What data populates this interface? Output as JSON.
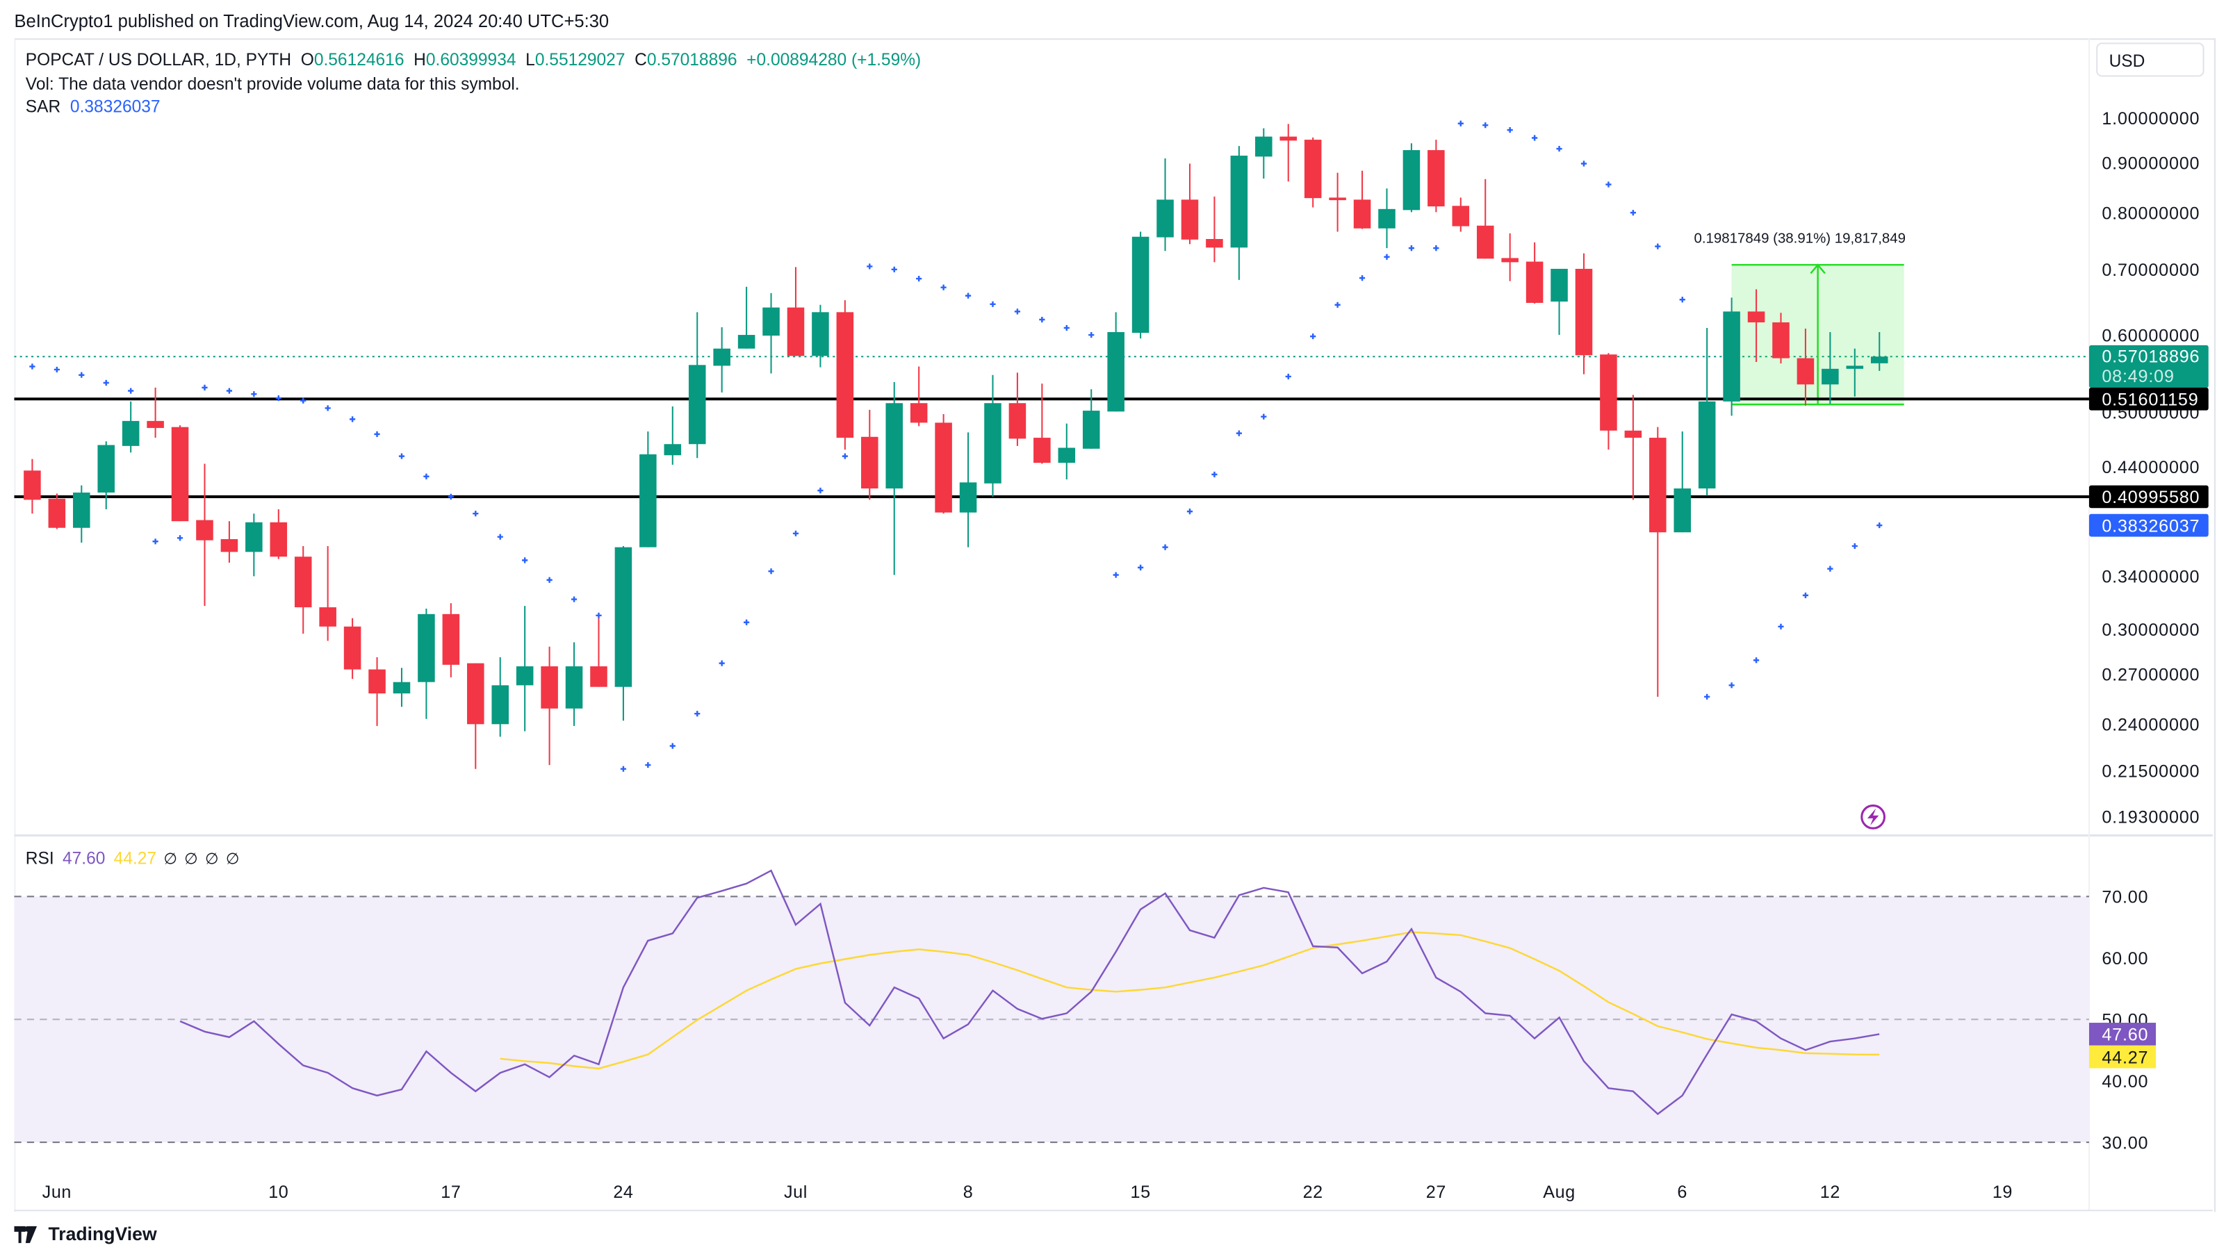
{
  "header": {
    "published": "BeInCrypto1 published on TradingView.com, Aug 14, 2024 20:40 UTC+5:30"
  },
  "legend": {
    "symbol": "POPCAT / US DOLLAR, 1D, PYTH",
    "o_label": "O",
    "o": "0.56124616",
    "h_label": "H",
    "h": "0.60399934",
    "l_label": "L",
    "l": "0.55129027",
    "c_label": "C",
    "c": "0.57018896",
    "change": "+0.00894280 (+1.59%)",
    "vol": "Vol: The data vendor doesn't provide volume data for this symbol.",
    "sar_label": "SAR",
    "sar": "0.38326037"
  },
  "currency": "USD",
  "price_axis": {
    "ticks": [
      "1.00000000",
      "0.90000000",
      "0.80000000",
      "0.70000000",
      "0.60000000",
      "0.50000000",
      "0.44000000",
      "0.34000000",
      "0.30000000",
      "0.27000000",
      "0.24000000",
      "0.21500000",
      "0.19300000"
    ]
  },
  "price_labels": {
    "last": "0.57018896",
    "countdown": "08:49:09",
    "level1": "0.51601159",
    "level2": "0.40995580",
    "sar": "0.38326037"
  },
  "measure": {
    "text": "0.19817849 (38.91%) 19,817,849",
    "from_price": 0.5094,
    "to_price": 0.7076,
    "start_index": 69,
    "end_index": 76
  },
  "rsi": {
    "label": "RSI",
    "value": "47.60",
    "ma": "44.27",
    "extras": [
      "∅",
      "∅",
      "∅",
      "∅"
    ],
    "ticks": [
      "70.00",
      "60.00",
      "50.00",
      "40.00",
      "30.00"
    ],
    "bands": [
      70,
      50,
      30
    ]
  },
  "x_axis": [
    {
      "label": "Jun",
      "index": 1
    },
    {
      "label": "10",
      "index": 10
    },
    {
      "label": "17",
      "index": 17
    },
    {
      "label": "24",
      "index": 24
    },
    {
      "label": "Jul",
      "index": 31
    },
    {
      "label": "8",
      "index": 38
    },
    {
      "label": "15",
      "index": 45
    },
    {
      "label": "22",
      "index": 52
    },
    {
      "label": "27",
      "index": 57
    },
    {
      "label": "Aug",
      "index": 62
    },
    {
      "label": "6",
      "index": 67
    },
    {
      "label": "12",
      "index": 73
    },
    {
      "label": "19",
      "index": 80
    }
  ],
  "footer": {
    "brand": "TradingView"
  },
  "colors": {
    "up": "#089981",
    "down": "#f23645",
    "sar": "#2962ff",
    "rsi": "#7e57c2",
    "rsi_ma": "#fdd835",
    "level": "#000000",
    "measure": "#22dd22"
  },
  "chart_data": {
    "type": "candlestick",
    "title": "POPCAT / US DOLLAR, 1D, PYTH",
    "scale": "log",
    "ylim": [
      0.193,
      1.0
    ],
    "candles_ohlc": [
      [
        0.436,
        0.448,
        0.394,
        0.407
      ],
      [
        0.408,
        0.413,
        0.38,
        0.381
      ],
      [
        0.381,
        0.421,
        0.368,
        0.414
      ],
      [
        0.414,
        0.467,
        0.398,
        0.463
      ],
      [
        0.462,
        0.513,
        0.455,
        0.49
      ],
      [
        0.49,
        0.53,
        0.471,
        0.482
      ],
      [
        0.483,
        0.485,
        0.387,
        0.387
      ],
      [
        0.388,
        0.443,
        0.317,
        0.37
      ],
      [
        0.371,
        0.387,
        0.351,
        0.36
      ],
      [
        0.36,
        0.394,
        0.34,
        0.386
      ],
      [
        0.386,
        0.398,
        0.354,
        0.356
      ],
      [
        0.356,
        0.365,
        0.297,
        0.316
      ],
      [
        0.316,
        0.365,
        0.292,
        0.302
      ],
      [
        0.302,
        0.308,
        0.267,
        0.273
      ],
      [
        0.273,
        0.281,
        0.239,
        0.258
      ],
      [
        0.258,
        0.274,
        0.25,
        0.265
      ],
      [
        0.265,
        0.315,
        0.243,
        0.311
      ],
      [
        0.311,
        0.319,
        0.268,
        0.276
      ],
      [
        0.277,
        0.277,
        0.216,
        0.24
      ],
      [
        0.24,
        0.281,
        0.233,
        0.263
      ],
      [
        0.263,
        0.317,
        0.236,
        0.275
      ],
      [
        0.275,
        0.288,
        0.218,
        0.249
      ],
      [
        0.249,
        0.291,
        0.239,
        0.275
      ],
      [
        0.275,
        0.308,
        0.262,
        0.262
      ],
      [
        0.262,
        0.365,
        0.242,
        0.364
      ],
      [
        0.364,
        0.478,
        0.364,
        0.453
      ],
      [
        0.452,
        0.507,
        0.442,
        0.464
      ],
      [
        0.464,
        0.633,
        0.449,
        0.559
      ],
      [
        0.558,
        0.611,
        0.524,
        0.581
      ],
      [
        0.581,
        0.672,
        0.581,
        0.6
      ],
      [
        0.599,
        0.662,
        0.548,
        0.64
      ],
      [
        0.64,
        0.704,
        0.571,
        0.571
      ],
      [
        0.571,
        0.644,
        0.556,
        0.633
      ],
      [
        0.633,
        0.651,
        0.458,
        0.471
      ],
      [
        0.472,
        0.503,
        0.407,
        0.418
      ],
      [
        0.418,
        0.537,
        0.341,
        0.511
      ],
      [
        0.511,
        0.557,
        0.484,
        0.488
      ],
      [
        0.488,
        0.498,
        0.394,
        0.395
      ],
      [
        0.395,
        0.477,
        0.364,
        0.424
      ],
      [
        0.423,
        0.546,
        0.41,
        0.511
      ],
      [
        0.511,
        0.549,
        0.462,
        0.47
      ],
      [
        0.471,
        0.535,
        0.443,
        0.444
      ],
      [
        0.444,
        0.487,
        0.427,
        0.46
      ],
      [
        0.459,
        0.528,
        0.459,
        0.502
      ],
      [
        0.501,
        0.633,
        0.501,
        0.604
      ],
      [
        0.603,
        0.765,
        0.595,
        0.756
      ],
      [
        0.755,
        0.909,
        0.731,
        0.825
      ],
      [
        0.825,
        0.898,
        0.743,
        0.751
      ],
      [
        0.752,
        0.831,
        0.712,
        0.737
      ],
      [
        0.737,
        0.936,
        0.683,
        0.915
      ],
      [
        0.913,
        0.976,
        0.867,
        0.957
      ],
      [
        0.957,
        0.986,
        0.861,
        0.948
      ],
      [
        0.95,
        0.955,
        0.81,
        0.828
      ],
      [
        0.829,
        0.879,
        0.765,
        0.824
      ],
      [
        0.825,
        0.883,
        0.77,
        0.771
      ],
      [
        0.771,
        0.847,
        0.736,
        0.807
      ],
      [
        0.805,
        0.942,
        0.801,
        0.927
      ],
      [
        0.927,
        0.95,
        0.801,
        0.812
      ],
      [
        0.813,
        0.829,
        0.765,
        0.775
      ],
      [
        0.776,
        0.866,
        0.718,
        0.718
      ],
      [
        0.719,
        0.762,
        0.681,
        0.712
      ],
      [
        0.713,
        0.746,
        0.646,
        0.647
      ],
      [
        0.649,
        0.698,
        0.6,
        0.701
      ],
      [
        0.701,
        0.727,
        0.547,
        0.572
      ],
      [
        0.573,
        0.575,
        0.458,
        0.479
      ],
      [
        0.479,
        0.521,
        0.407,
        0.471
      ],
      [
        0.471,
        0.483,
        0.256,
        0.377
      ],
      [
        0.377,
        0.478,
        0.377,
        0.418
      ],
      [
        0.418,
        0.61,
        0.411,
        0.513
      ],
      [
        0.513,
        0.655,
        0.496,
        0.634
      ],
      [
        0.634,
        0.668,
        0.563,
        0.618
      ],
      [
        0.618,
        0.632,
        0.561,
        0.568
      ],
      [
        0.568,
        0.609,
        0.508,
        0.534
      ],
      [
        0.534,
        0.604,
        0.51,
        0.554
      ],
      [
        0.554,
        0.581,
        0.519,
        0.558
      ],
      [
        0.56124616,
        0.60399934,
        0.55129027,
        0.57018896
      ]
    ],
    "sar": [
      0.557,
      0.553,
      0.546,
      0.536,
      0.526,
      0.369,
      0.372,
      0.53,
      0.526,
      0.522,
      0.517,
      0.514,
      0.505,
      0.492,
      0.475,
      0.451,
      0.43,
      0.41,
      0.394,
      0.373,
      0.353,
      0.337,
      0.322,
      0.31,
      0.216,
      0.218,
      0.228,
      0.246,
      0.277,
      0.305,
      0.344,
      0.376,
      0.416,
      0.451,
      0.705,
      0.7,
      0.685,
      0.671,
      0.658,
      0.645,
      0.634,
      0.622,
      0.61,
      0.6,
      0.341,
      0.347,
      0.364,
      0.396,
      0.432,
      0.476,
      0.495,
      0.544,
      0.598,
      0.644,
      0.686,
      0.721,
      0.736,
      0.736,
      0.987,
      0.983,
      0.972,
      0.954,
      0.93,
      0.898,
      0.855,
      0.8,
      0.739,
      0.652,
      0.256,
      0.263,
      0.279,
      0.302,
      0.325,
      0.346,
      0.365,
      0.38326037
    ],
    "hlines": [
      0.51601159,
      0.4099558
    ],
    "last_price": 0.57018896,
    "rsi_start_index": 6,
    "rsi_values": [
      49.7,
      48.0,
      47.1,
      49.7,
      46.0,
      42.5,
      41.3,
      38.8,
      37.6,
      38.6,
      44.8,
      41.3,
      38.3,
      41.3,
      42.7,
      40.6,
      44.1,
      42.7,
      55.2,
      62.8,
      64.0,
      69.8,
      70.9,
      72.1,
      74.2,
      65.4,
      68.8,
      52.7,
      49.0,
      55.2,
      53.4,
      46.9,
      49.2,
      54.7,
      51.7,
      50.1,
      51.0,
      54.5,
      61.0,
      67.9,
      70.5,
      64.5,
      63.3,
      70.2,
      71.4,
      70.7,
      61.9,
      61.7,
      57.5,
      59.4,
      64.7,
      56.8,
      54.5,
      51.0,
      50.6,
      46.9,
      50.3,
      43.2,
      38.8,
      38.3,
      34.6,
      37.6,
      44.3,
      50.8,
      49.7,
      46.9,
      45.0,
      46.4,
      46.9,
      47.6
    ],
    "rsi_ma_start_index": 19,
    "rsi_ma_values": [
      43.6,
      43.2,
      42.9,
      42.4,
      42.0,
      43.1,
      44.3,
      47.1,
      49.9,
      52.3,
      54.7,
      56.5,
      58.2,
      59.1,
      59.8,
      60.5,
      61.0,
      61.4,
      61.0,
      60.5,
      59.3,
      58.0,
      56.6,
      55.2,
      54.8,
      54.5,
      54.8,
      55.2,
      56.0,
      56.8,
      57.8,
      58.8,
      60.2,
      61.6,
      62.2,
      62.8,
      63.5,
      64.2,
      64.0,
      63.7,
      62.7,
      61.6,
      59.8,
      57.9,
      55.4,
      52.8,
      50.9,
      48.9,
      47.9,
      46.8,
      46.1,
      45.4,
      45.0,
      44.5,
      44.4,
      44.3,
      44.27
    ],
    "rsi_ylim": [
      30,
      70
    ]
  }
}
